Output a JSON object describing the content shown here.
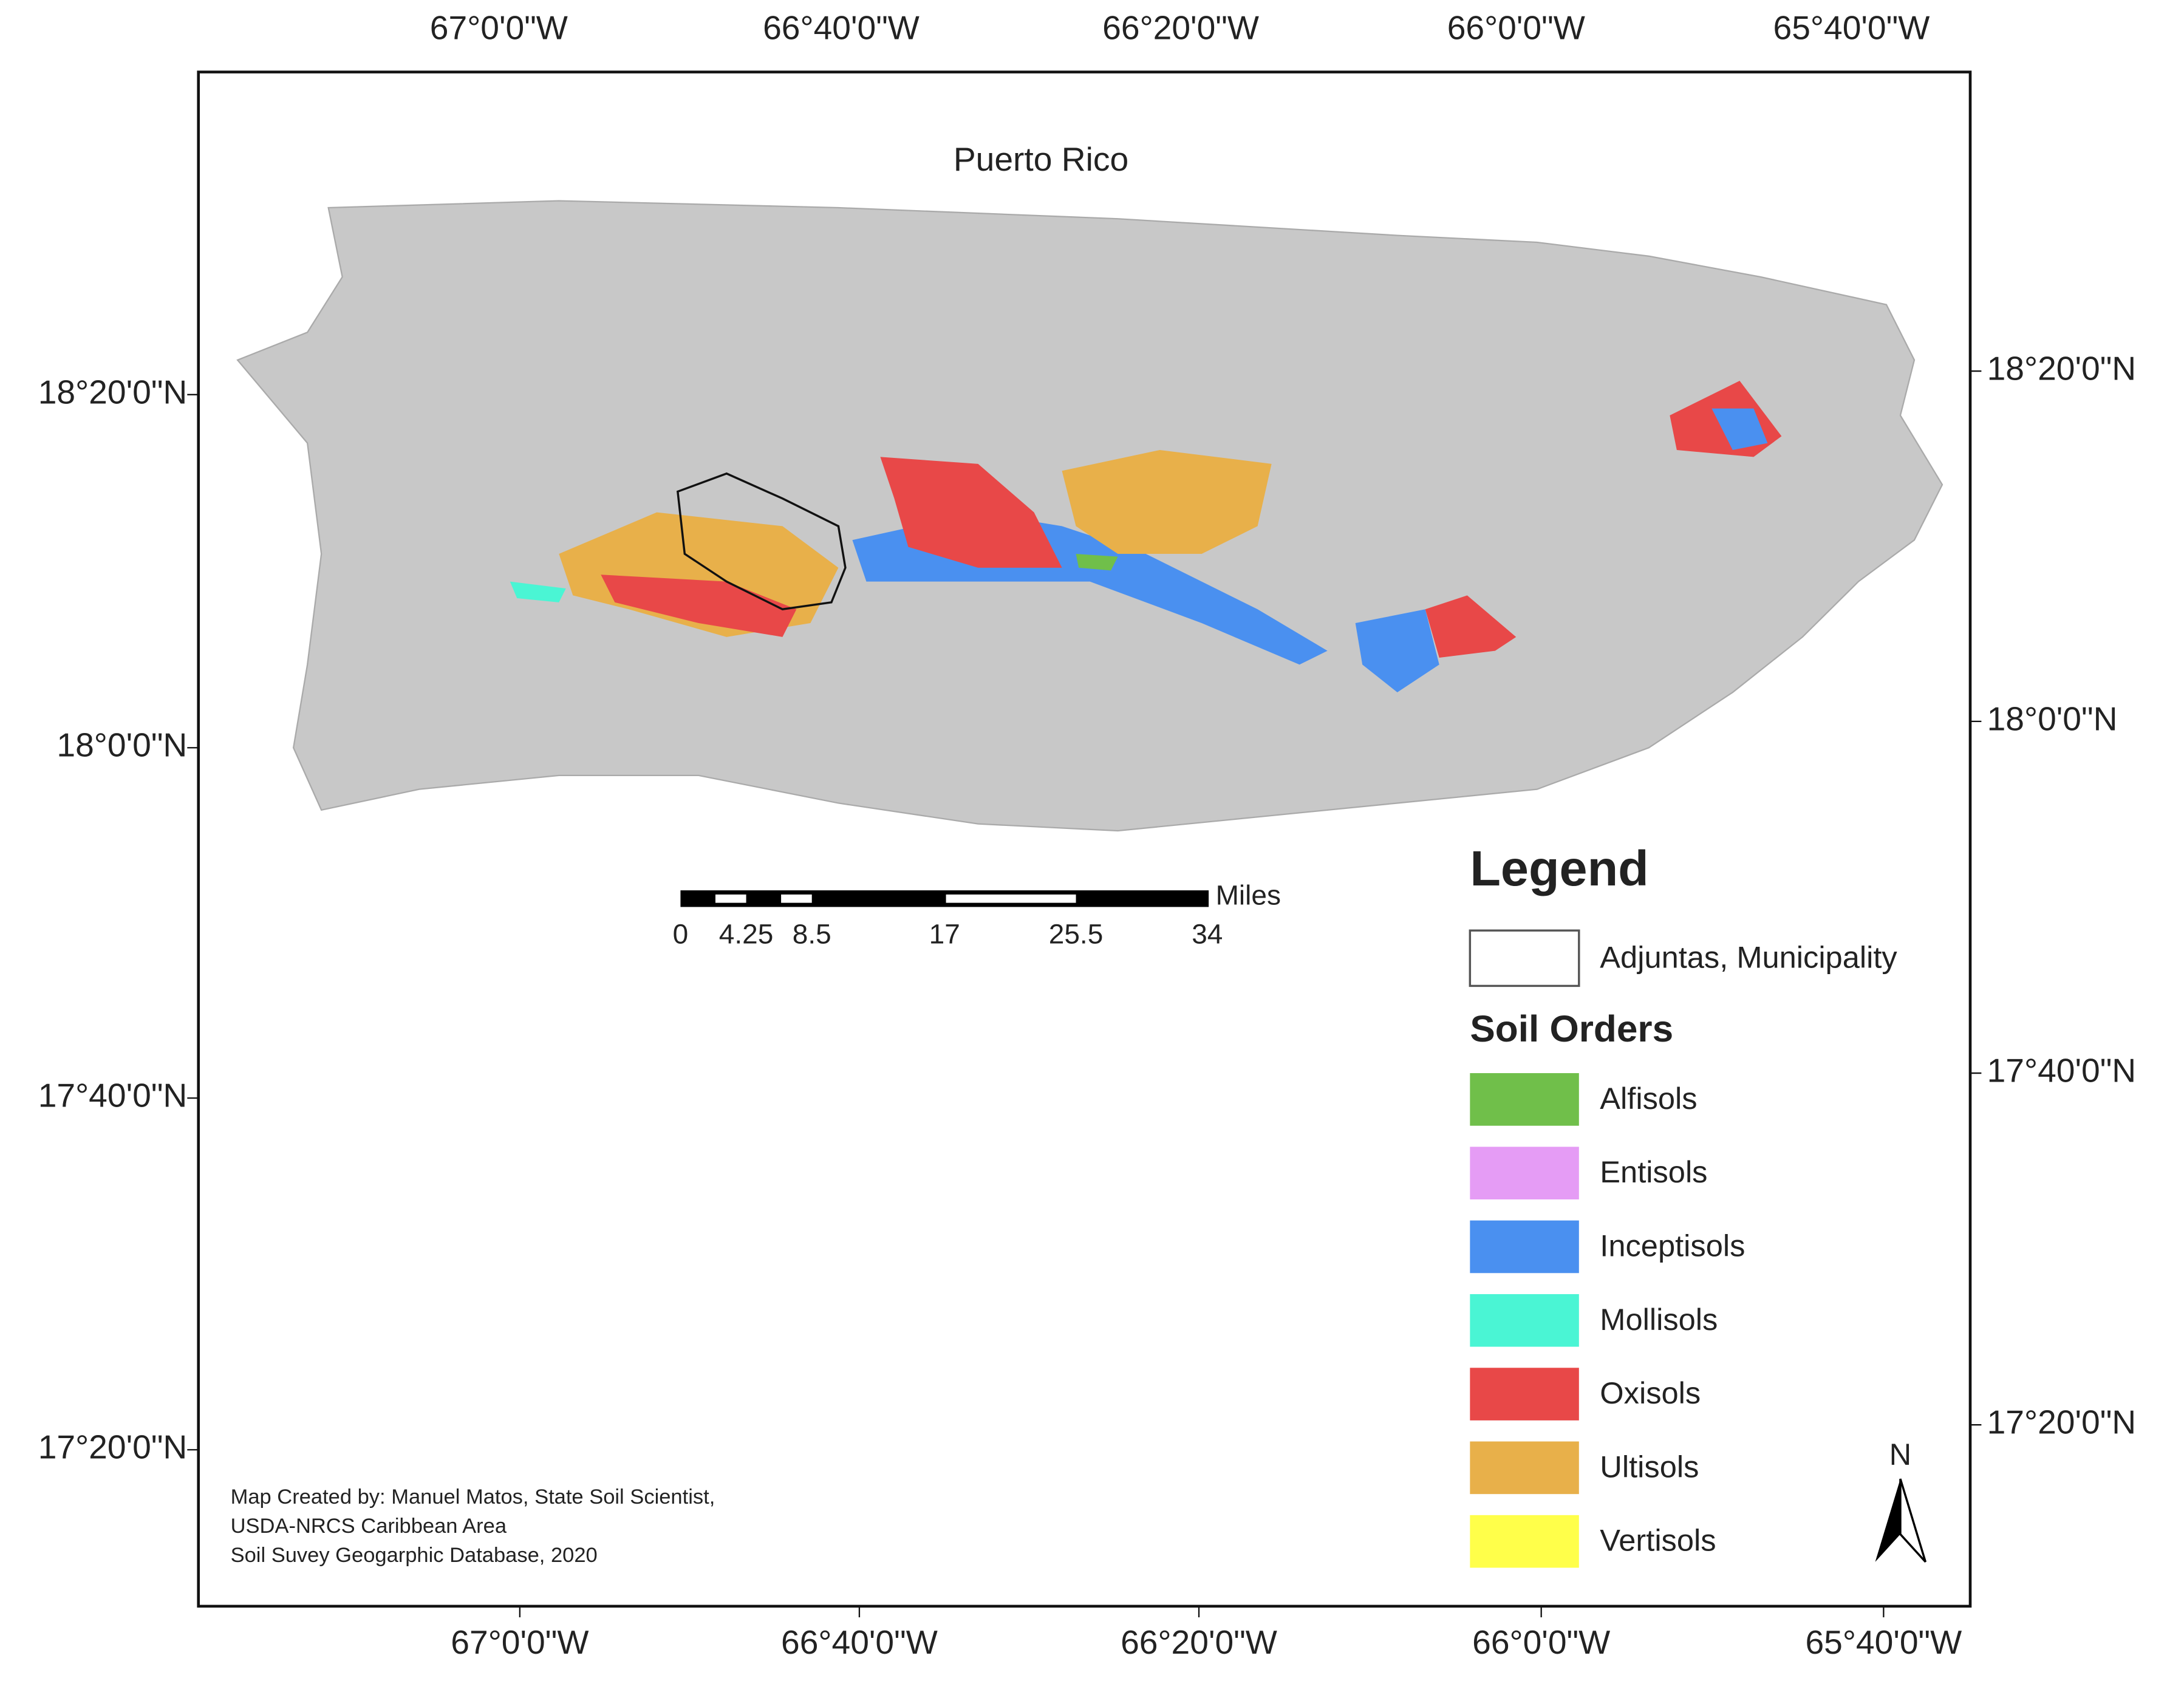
{
  "title": "Puerto Rico",
  "axes": {
    "top": [
      "67°0'0\"W",
      "66°40'0\"W",
      "66°20'0\"W",
      "66°0'0\"W",
      "65°40'0\"W"
    ],
    "bottom": [
      "67°0'0\"W",
      "66°40'0\"W",
      "66°20'0\"W",
      "66°0'0\"W",
      "65°40'0\"W"
    ],
    "left": [
      "18°20'0\"N",
      "18°0'0\"N",
      "17°40'0\"N",
      "17°20'0\"N"
    ],
    "right": [
      "18°20'0\"N",
      "18°0'0\"N",
      "17°40'0\"N",
      "17°20'0\"N"
    ]
  },
  "scale_bar": {
    "unit": "Miles",
    "labels": [
      "0",
      "4.25",
      "8.5",
      "17",
      "25.5",
      "34"
    ]
  },
  "legend": {
    "title": "Legend",
    "boundary": "Adjuntas, Municipality",
    "subtitle": "Soil Orders",
    "items": [
      {
        "label": "Alfisols",
        "color": "#70bf4a"
      },
      {
        "label": "Entisols",
        "color": "#e59cf5"
      },
      {
        "label": "Inceptisols",
        "color": "#4a90f0"
      },
      {
        "label": "Mollisols",
        "color": "#4af5d4"
      },
      {
        "label": "Oxisols",
        "color": "#e84848"
      },
      {
        "label": "Ultisols",
        "color": "#e8b04a"
      },
      {
        "label": "Vertisols",
        "color": "#ffff4a"
      }
    ]
  },
  "north": "N",
  "credit": [
    "Map Created by: Manuel Matos, State Soil Scientist,",
    "USDA-NRCS Caribbean Area",
    "Soil Suvey Geogarphic Database, 2020"
  ]
}
